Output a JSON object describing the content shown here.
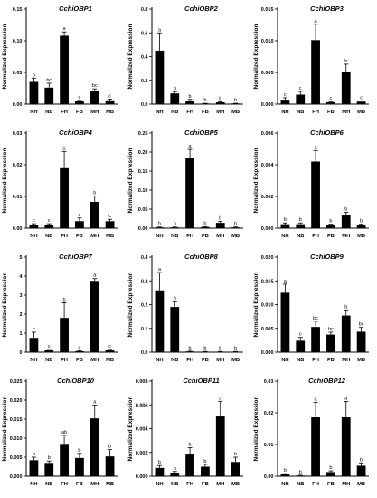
{
  "figure": {
    "ylabel": "Normalized Expression"
  },
  "chart_data": [
    {
      "type": "bar",
      "title": "CchiOBP1",
      "ylabel": "Normalized Expression",
      "categories": [
        "NH",
        "NB",
        "FH",
        "FB",
        "MH",
        "MB"
      ],
      "values": [
        0.035,
        0.026,
        0.108,
        0.005,
        0.02,
        0.006
      ],
      "errors": [
        0.006,
        0.007,
        0.006,
        0.001,
        0.004,
        0.002
      ],
      "significance": [
        "b",
        "bc",
        "a",
        "c",
        "bc",
        "c"
      ],
      "ylim": [
        0,
        0.15
      ],
      "yticks": [
        "0.00",
        "0.05",
        "0.10",
        "0.15"
      ],
      "ytick_values": [
        0,
        0.05,
        0.1,
        0.15
      ]
    },
    {
      "type": "bar",
      "title": "CchiOBP2",
      "ylabel": "Normalized Expression",
      "categories": [
        "NH",
        "NB",
        "FH",
        "FB",
        "MH",
        "MB"
      ],
      "values": [
        0.45,
        0.09,
        0.03,
        0.005,
        0.015,
        0.005
      ],
      "errors": [
        0.15,
        0.015,
        0.01,
        0.002,
        0.003,
        0.002
      ],
      "significance": [
        "a",
        "b",
        "b",
        "b",
        "b",
        "b"
      ],
      "ylim": [
        0,
        0.8
      ],
      "yticks": [
        "0.0",
        "0.2",
        "0.4",
        "0.6",
        "0.8"
      ],
      "ytick_values": [
        0,
        0.2,
        0.4,
        0.6,
        0.8
      ]
    },
    {
      "type": "bar",
      "title": "CchiOBP3",
      "ylabel": "Normalized Expression",
      "categories": [
        "NH",
        "NB",
        "FH",
        "FB",
        "MH",
        "MB"
      ],
      "values": [
        0.0007,
        0.0015,
        0.0101,
        0.0003,
        0.0051,
        0.0004
      ],
      "errors": [
        0.0003,
        0.0005,
        0.0025,
        0.0001,
        0.0012,
        0.0001
      ],
      "significance": [
        "c",
        "c",
        "a",
        "c",
        "b",
        "c"
      ],
      "ylim": [
        0,
        0.015
      ],
      "yticks": [
        "0.000",
        "0.005",
        "0.010",
        "0.015"
      ],
      "ytick_values": [
        0,
        0.005,
        0.01,
        0.015
      ]
    },
    {
      "type": "bar",
      "title": "CchiOBP4",
      "ylabel": "Normalized Expression",
      "categories": [
        "NH",
        "NB",
        "FH",
        "FB",
        "MH",
        "MB"
      ],
      "values": [
        0.001,
        0.001,
        0.0192,
        0.0022,
        0.0083,
        0.0022
      ],
      "errors": [
        0.0004,
        0.0004,
        0.005,
        0.001,
        0.0018,
        0.0006
      ],
      "significance": [
        "c",
        "c",
        "a",
        "c",
        "b",
        "c"
      ],
      "ylim": [
        0,
        0.03
      ],
      "yticks": [
        "0.00",
        "0.01",
        "0.02",
        "0.03"
      ],
      "ytick_values": [
        0,
        0.01,
        0.02,
        0.03
      ]
    },
    {
      "type": "bar",
      "title": "CchiOBP5",
      "ylabel": "Normalized Expression",
      "categories": [
        "NH",
        "NB",
        "FH",
        "FB",
        "MH",
        "MB"
      ],
      "values": [
        0.002,
        0.002,
        0.185,
        0.003,
        0.014,
        0.002
      ],
      "errors": [
        0.001,
        0.001,
        0.022,
        0.001,
        0.004,
        0.001
      ],
      "significance": [
        "b",
        "b",
        "a",
        "b",
        "b",
        "b"
      ],
      "ylim": [
        0,
        0.25
      ],
      "yticks": [
        "0.00",
        "0.05",
        "0.10",
        "0.15",
        "0.20",
        "0.25"
      ],
      "ytick_values": [
        0,
        0.05,
        0.1,
        0.15,
        0.2,
        0.25
      ]
    },
    {
      "type": "bar",
      "title": "CchiOBP6",
      "ylabel": "Normalized Expression",
      "categories": [
        "NH",
        "NB",
        "FH",
        "FB",
        "MH",
        "MB"
      ],
      "values": [
        0.00025,
        0.00025,
        0.0042,
        0.0002,
        0.0008,
        0.0002
      ],
      "errors": [
        8e-05,
        8e-05,
        0.0007,
        5e-05,
        0.0002,
        5e-05
      ],
      "significance": [
        "b",
        "b",
        "a",
        "b",
        "b",
        "b"
      ],
      "ylim": [
        0,
        0.006
      ],
      "yticks": [
        "0.000",
        "0.002",
        "0.004",
        "0.006"
      ],
      "ytick_values": [
        0,
        0.002,
        0.004,
        0.006
      ]
    },
    {
      "type": "bar",
      "title": "CchiOBP7",
      "ylabel": "Normalized Expression",
      "categories": [
        "NH",
        "NB",
        "FH",
        "FB",
        "MH",
        "MB"
      ],
      "values": [
        0.75,
        0.1,
        1.8,
        0.05,
        3.75,
        0.1
      ],
      "errors": [
        0.3,
        0.04,
        0.8,
        0.02,
        0.12,
        0.05
      ],
      "significance": [
        "c",
        "c",
        "b",
        "c",
        "a",
        "c"
      ],
      "ylim": [
        0,
        5
      ],
      "yticks": [
        "0",
        "1",
        "2",
        "3",
        "4",
        "5"
      ],
      "ytick_values": [
        0,
        1,
        2,
        3,
        4,
        5
      ]
    },
    {
      "type": "bar",
      "title": "CchiOBP8",
      "ylabel": "Normalized Expression",
      "categories": [
        "NH",
        "NB",
        "FH",
        "FB",
        "MH",
        "MB"
      ],
      "values": [
        0.26,
        0.19,
        0.003,
        0.002,
        0.002,
        0.002
      ],
      "errors": [
        0.075,
        0.025,
        0.001,
        0.001,
        0.001,
        0.001
      ],
      "significance": [
        "a",
        "a",
        "b",
        "b",
        "b",
        "b"
      ],
      "ylim": [
        0,
        0.4
      ],
      "yticks": [
        "0.0",
        "0.1",
        "0.2",
        "0.3",
        "0.4"
      ],
      "ytick_values": [
        0,
        0.1,
        0.2,
        0.3,
        0.4
      ]
    },
    {
      "type": "bar",
      "title": "CchiOBP9",
      "ylabel": "Normalized Expression",
      "categories": [
        "NH",
        "NB",
        "FH",
        "FB",
        "MH",
        "MB"
      ],
      "values": [
        0.0125,
        0.0024,
        0.0053,
        0.0037,
        0.0077,
        0.0043
      ],
      "errors": [
        0.0018,
        0.0007,
        0.0012,
        0.0005,
        0.0012,
        0.0009
      ],
      "significance": [
        "a",
        "c",
        "bc",
        "bc",
        "b",
        "bc"
      ],
      "ylim": [
        0,
        0.02
      ],
      "yticks": [
        "0.000",
        "0.005",
        "0.010",
        "0.015",
        "0.020"
      ],
      "ytick_values": [
        0,
        0.005,
        0.01,
        0.015,
        0.02
      ]
    },
    {
      "type": "bar",
      "title": "CchiOBP10",
      "ylabel": "Normalized Expression",
      "categories": [
        "NH",
        "NB",
        "FH",
        "FB",
        "MH",
        "MB"
      ],
      "values": [
        0.0042,
        0.0035,
        0.0085,
        0.0048,
        0.0152,
        0.0052
      ],
      "errors": [
        0.0008,
        0.0005,
        0.0022,
        0.0012,
        0.0035,
        0.0018
      ],
      "significance": [
        "b",
        "b",
        "ab",
        "b",
        "a",
        "b"
      ],
      "ylim": [
        0,
        0.025
      ],
      "yticks": [
        "0.000",
        "0.005",
        "0.010",
        "0.015",
        "0.020",
        "0.025"
      ],
      "ytick_values": [
        0,
        0.005,
        0.01,
        0.015,
        0.02,
        0.025
      ]
    },
    {
      "type": "bar",
      "title": "CchiOBP11",
      "ylabel": "Normalized Expression",
      "categories": [
        "NH",
        "NB",
        "FH",
        "FB",
        "MH",
        "MB"
      ],
      "values": [
        0.0007,
        0.0003,
        0.0019,
        0.0008,
        0.0051,
        0.0012
      ],
      "errors": [
        0.0002,
        0.0001,
        0.0005,
        0.0002,
        0.0012,
        0.0004
      ],
      "significance": [
        "b",
        "b",
        "b",
        "b",
        "a",
        "b"
      ],
      "ylim": [
        0,
        0.008
      ],
      "yticks": [
        "0.000",
        "0.002",
        "0.004",
        "0.006",
        "0.008"
      ],
      "ytick_values": [
        0,
        0.002,
        0.004,
        0.006,
        0.008
      ]
    },
    {
      "type": "bar",
      "title": "CchiOBP12",
      "ylabel": "Normalized Expression",
      "categories": [
        "NH",
        "NB",
        "FH",
        "FB",
        "MH",
        "MB"
      ],
      "values": [
        0.0006,
        0.0002,
        0.0188,
        0.0013,
        0.0188,
        0.0033
      ],
      "errors": [
        0.0002,
        0.0001,
        0.0045,
        0.0004,
        0.0048,
        0.0009
      ],
      "significance": [
        "b",
        "b",
        "a",
        "b",
        "a",
        "b"
      ],
      "ylim": [
        0,
        0.03
      ],
      "yticks": [
        "0.00",
        "0.01",
        "0.02",
        "0.03"
      ],
      "ytick_values": [
        0,
        0.01,
        0.02,
        0.03
      ]
    }
  ]
}
